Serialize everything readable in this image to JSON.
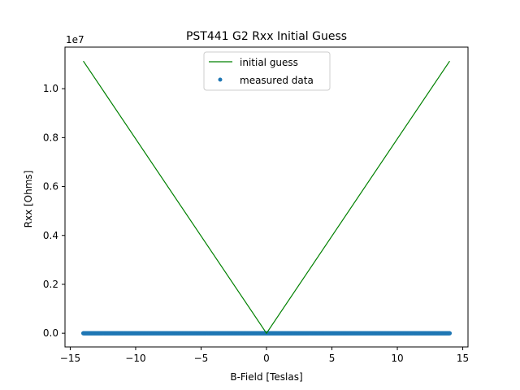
{
  "chart_data": {
    "type": "line",
    "title": "PST441 G2 Rxx Initial Guess",
    "xlabel": "B-Field [Teslas]",
    "ylabel": "Rxx [Ohms]",
    "y_offset_label": "1e7",
    "xlim": [
      -15.4,
      15.4
    ],
    "ylim": [
      -0.056,
      1.17
    ],
    "y_scale_factor": 10000000,
    "x_ticks": [
      -15,
      -10,
      -5,
      0,
      5,
      10,
      15
    ],
    "x_tick_labels": [
      "−15",
      "−10",
      "−5",
      "0",
      "5",
      "10",
      "15"
    ],
    "y_ticks": [
      0.0,
      0.2,
      0.4,
      0.6,
      0.8,
      1.0
    ],
    "y_tick_labels": [
      "0.0",
      "0.2",
      "0.4",
      "0.6",
      "0.8",
      "1.0"
    ],
    "grid": false,
    "legend_position": "top-center",
    "series": [
      {
        "name": "initial guess",
        "kind": "line",
        "color": "#008000",
        "x": [
          -14,
          0,
          14
        ],
        "y": [
          1.113,
          0.0,
          1.113
        ]
      },
      {
        "name": "measured data",
        "kind": "scatter",
        "color": "#1f77b4",
        "x_range": [
          -14,
          14
        ],
        "y_value": 0.0
      }
    ]
  }
}
